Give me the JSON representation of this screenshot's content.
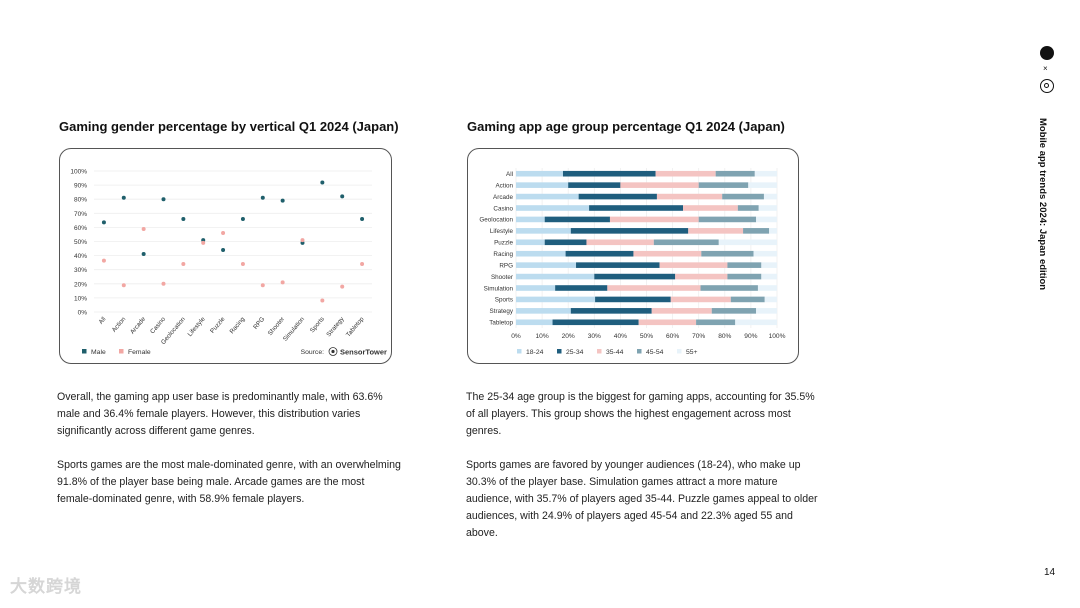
{
  "brand": {
    "separator": "×",
    "doc_title": "Mobile app trends 2024: Japan edition",
    "page_number": "14",
    "watermark": "大数跨境"
  },
  "gender_section": {
    "paragraphs": [
      "Overall, the gaming app user base is predominantly male, with 63.6% male and 36.4% female players. However, this distribution varies significantly across different game genres.",
      "Sports games are the most male-dominated genre, with an overwhelming 91.8% of the player base being male. Arcade games are the most female-dominated genre, with 58.9% female players."
    ]
  },
  "age_section": {
    "paragraphs": [
      "The 25-34 age group is the biggest for gaming apps, accounting for 35.5% of all players. This group shows the highest engagement across most genres.",
      "Sports games are favored by younger audiences (18-24), who make up 30.3% of the player base. Simulation games attract a more mature audience, with 35.7% of players aged 35-44. Puzzle games appeal to older audiences, with 24.9% of players aged 45-54 and 22.3% aged 55 and above."
    ]
  },
  "chart_data": [
    {
      "type": "scatter",
      "title": "Gaming gender percentage by vertical Q1 2024 (Japan)",
      "source_label": "Source:",
      "source_name": "SensorTower",
      "categories": [
        "All",
        "Action",
        "Arcade",
        "Casino",
        "Geolocation",
        "Lifestyle",
        "Puzzle",
        "Racing",
        "RPG",
        "Shooter",
        "Simulation",
        "Sports",
        "Strategy",
        "Tabletop"
      ],
      "ylim": [
        0,
        100
      ],
      "yticks": [
        "0%",
        "10%",
        "20%",
        "30%",
        "40%",
        "50%",
        "60%",
        "70%",
        "80%",
        "90%",
        "100%"
      ],
      "series": [
        {
          "name": "Male",
          "color": "#1f5f6b",
          "values": [
            63.6,
            81,
            41.1,
            80,
            66,
            51,
            44,
            66,
            81,
            79,
            49,
            91.8,
            82,
            66
          ]
        },
        {
          "name": "Female",
          "color": "#f2a7a3",
          "values": [
            36.4,
            19,
            58.9,
            20,
            34,
            49,
            56,
            34,
            19,
            21,
            51,
            8.2,
            18,
            34
          ]
        }
      ],
      "grid": true,
      "legend": "bottom-left"
    },
    {
      "type": "bar",
      "orientation": "horizontal-stacked",
      "title": "Gaming app age group percentage Q1 2024 (Japan)",
      "categories": [
        "All",
        "Action",
        "Arcade",
        "Casino",
        "Geolocation",
        "Lifestyle",
        "Puzzle",
        "Racing",
        "RPG",
        "Shooter",
        "Simulation",
        "Sports",
        "Strategy",
        "Tabletop"
      ],
      "xlim": [
        0,
        100
      ],
      "xticks": [
        "0%",
        "10%",
        "20%",
        "30%",
        "40%",
        "50%",
        "60%",
        "70%",
        "80%",
        "90%",
        "100%"
      ],
      "series": [
        {
          "name": "18-24",
          "color": "#bcdcef",
          "values": [
            18,
            20,
            24,
            28,
            11,
            21,
            11,
            19,
            23,
            30,
            15,
            30.3,
            21,
            14
          ]
        },
        {
          "name": "25-34",
          "color": "#1f5e7e",
          "values": [
            35.5,
            20,
            30,
            36,
            25,
            45,
            16,
            26,
            32,
            31,
            20,
            29,
            31,
            33
          ]
        },
        {
          "name": "35-44",
          "color": "#f4c4c2",
          "values": [
            23,
            30,
            25,
            21,
            34,
            21,
            25.8,
            26,
            26,
            20,
            35.7,
            23,
            23,
            22
          ]
        },
        {
          "name": "45-54",
          "color": "#7fa3b1",
          "values": [
            15,
            19,
            16,
            8,
            22,
            10,
            24.9,
            20,
            13,
            13,
            22,
            13,
            17,
            15
          ]
        },
        {
          "name": "55+",
          "color": "#e8f3fa",
          "values": [
            8.5,
            11,
            5,
            7,
            8,
            3,
            22.3,
            9,
            6,
            6,
            7.3,
            4.7,
            8,
            16
          ]
        }
      ],
      "grid": true,
      "legend": "bottom"
    }
  ]
}
